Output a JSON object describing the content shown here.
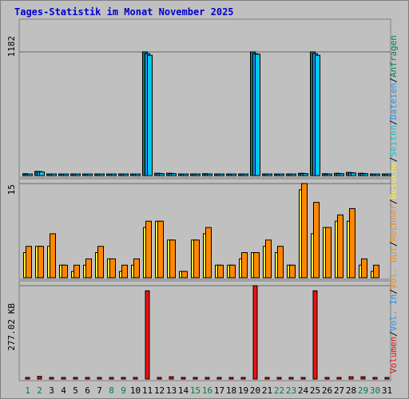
{
  "title": "Tages-Statistik im Monat November 2025",
  "colors": {
    "background": "#c0c0c0",
    "title": "#0000cc",
    "anfragen": "#008060",
    "dateien": "#1e90ff",
    "seiten": "#00c8e8",
    "besuche": "#ffee33",
    "rechner": "#ff8800",
    "volumen": "#ee1111",
    "weekday_label": "#000000",
    "weekend_label": "#008040"
  },
  "chart_data": [
    {
      "type": "bar",
      "name": "hits_panel",
      "y_max_label": "1182",
      "ylim": [
        0,
        1182
      ],
      "categories": [
        "1",
        "2",
        "3",
        "4",
        "5",
        "6",
        "7",
        "8",
        "9",
        "10",
        "11",
        "12",
        "13",
        "14",
        "15",
        "16",
        "17",
        "18",
        "19",
        "20",
        "21",
        "22",
        "23",
        "24",
        "25",
        "26",
        "27",
        "28",
        "29",
        "30",
        "31"
      ],
      "series": [
        {
          "name": "Anfragen",
          "values": [
            18,
            40,
            12,
            8,
            8,
            8,
            12,
            8,
            8,
            8,
            1182,
            22,
            22,
            8,
            8,
            18,
            8,
            8,
            8,
            1182,
            12,
            8,
            8,
            22,
            1182,
            18,
            22,
            30,
            22,
            8,
            8
          ]
        },
        {
          "name": "Dateien",
          "values": [
            15,
            38,
            10,
            6,
            6,
            6,
            10,
            6,
            6,
            6,
            1165,
            20,
            20,
            6,
            6,
            16,
            6,
            6,
            6,
            1165,
            10,
            6,
            6,
            20,
            1165,
            16,
            20,
            28,
            20,
            6,
            6
          ]
        },
        {
          "name": "Seiten",
          "values": [
            12,
            35,
            8,
            5,
            5,
            5,
            8,
            5,
            5,
            5,
            1150,
            18,
            18,
            5,
            5,
            14,
            5,
            5,
            5,
            1160,
            8,
            5,
            5,
            18,
            1150,
            14,
            18,
            25,
            18,
            5,
            5
          ]
        }
      ]
    },
    {
      "type": "bar",
      "name": "visits_panel",
      "y_max_label": "15",
      "ylim": [
        0,
        15
      ],
      "categories": [
        "1",
        "2",
        "3",
        "4",
        "5",
        "6",
        "7",
        "8",
        "9",
        "10",
        "11",
        "12",
        "13",
        "14",
        "15",
        "16",
        "17",
        "18",
        "19",
        "20",
        "21",
        "22",
        "23",
        "24",
        "25",
        "26",
        "27",
        "28",
        "29",
        "30",
        "31"
      ],
      "series": [
        {
          "name": "Besuche",
          "values": [
            4,
            5,
            5,
            2,
            1,
            2,
            4,
            3,
            1,
            2,
            8,
            9,
            6,
            1,
            6,
            7,
            2,
            2,
            3,
            4,
            5,
            4,
            2,
            14,
            7,
            8,
            9,
            9,
            2,
            1,
            0
          ]
        },
        {
          "name": "Rechner",
          "values": [
            5,
            5,
            7,
            2,
            2,
            3,
            5,
            3,
            2,
            3,
            9,
            9,
            6,
            1,
            6,
            8,
            2,
            2,
            4,
            4,
            6,
            5,
            2,
            15,
            12,
            8,
            10,
            11,
            3,
            2,
            0
          ]
        }
      ]
    },
    {
      "type": "bar",
      "name": "volume_panel",
      "y_max_label": "277.02 KB",
      "ylim": [
        0,
        277.02
      ],
      "y_unit": "KB",
      "categories": [
        "1",
        "2",
        "3",
        "4",
        "5",
        "6",
        "7",
        "8",
        "9",
        "10",
        "11",
        "12",
        "13",
        "14",
        "15",
        "16",
        "17",
        "18",
        "19",
        "20",
        "21",
        "22",
        "23",
        "24",
        "25",
        "26",
        "27",
        "28",
        "29",
        "30",
        "31"
      ],
      "series": [
        {
          "name": "Volumen",
          "values": [
            4,
            8,
            3,
            2,
            2,
            2,
            3,
            2,
            2,
            2,
            262,
            4,
            7,
            2,
            2,
            4,
            2,
            2,
            2,
            277.02,
            3,
            2,
            2,
            4,
            262,
            4,
            4,
            7,
            7,
            2,
            2
          ]
        }
      ]
    }
  ],
  "x_labels": {
    "weekend_days": [
      "1",
      "2",
      "8",
      "9",
      "15",
      "16",
      "22",
      "23",
      "29",
      "30"
    ]
  },
  "right_legend": [
    {
      "text": "Anfragen",
      "color": "#008060"
    },
    {
      "text": "/",
      "color": "#000000"
    },
    {
      "text": "Dateien",
      "color": "#1e90ff"
    },
    {
      "text": "/",
      "color": "#000000"
    },
    {
      "text": "Seiten",
      "color": "#00c8e8"
    },
    {
      "text": "/",
      "color": "#000000"
    },
    {
      "text": "Besuche",
      "color": "#ffee33"
    },
    {
      "text": "/",
      "color": "#000000"
    },
    {
      "text": "Rechner",
      "color": "#ff8800"
    },
    {
      "text": "/",
      "color": "#000000"
    },
    {
      "text": "Vol. Out",
      "color": "#ff8800"
    },
    {
      "text": "/",
      "color": "#000000"
    },
    {
      "text": "Vol. In",
      "color": "#1e90ff"
    },
    {
      "text": "/",
      "color": "#000000"
    },
    {
      "text": "Volumen",
      "color": "#ee1111"
    }
  ]
}
